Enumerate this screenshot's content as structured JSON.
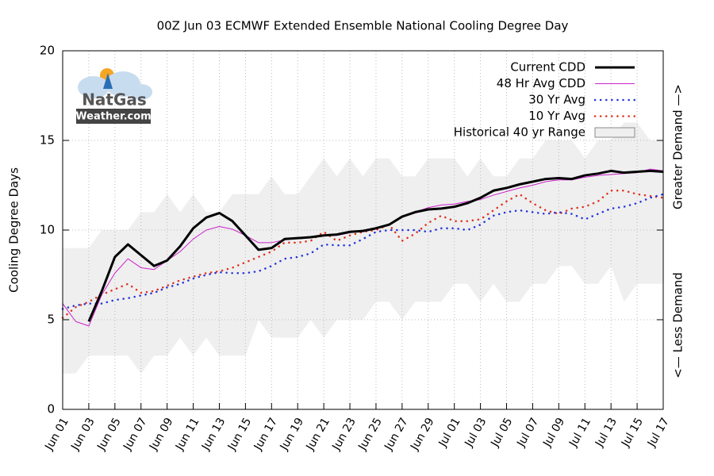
{
  "chart_data": {
    "type": "line",
    "title": "00Z Jun 03 ECMWF Extended Ensemble National Cooling Degree Day",
    "ylabel": "Cooling Degree Days",
    "right_labels": {
      "upper": "Greater Demand —>",
      "lower": "<— Less Demand"
    },
    "logo": {
      "line1": "NatGas",
      "line2": "Weather.com"
    },
    "categories": [
      "Jun 01",
      null,
      "Jun 03",
      null,
      "Jun 05",
      null,
      "Jun 07",
      null,
      "Jun 09",
      null,
      "Jun 11",
      null,
      "Jun 13",
      null,
      "Jun 15",
      null,
      "Jun 17",
      null,
      "Jun 19",
      null,
      "Jun 21",
      null,
      "Jun 23",
      null,
      "Jun 25",
      null,
      "Jun 27",
      null,
      "Jun 29",
      null,
      "Jul 01",
      null,
      "Jul 03",
      null,
      "Jul 05",
      null,
      "Jul 07",
      null,
      "Jul 09",
      null,
      "Jul 11",
      null,
      "Jul 13",
      null,
      "Jul 15",
      null,
      "Jul 17"
    ],
    "ylim": [
      0,
      20
    ],
    "yticks": [
      0,
      5,
      10,
      15,
      20
    ],
    "grid": true,
    "legend": "top-right",
    "range": {
      "name": "Historical 40 yr Range",
      "color": "#efefef",
      "high": [
        9,
        9,
        9,
        10,
        10,
        10,
        11,
        11,
        12,
        11,
        12,
        11,
        11,
        12,
        12,
        12,
        13,
        12,
        12,
        13,
        14,
        13,
        14,
        13,
        14,
        14,
        13,
        13,
        14,
        14,
        14,
        13,
        14,
        13,
        13,
        14,
        14,
        15,
        15,
        15,
        14,
        15,
        15,
        16,
        16,
        15,
        15
      ],
      "low": [
        2,
        2,
        3,
        3,
        3,
        3,
        2,
        3,
        3,
        4,
        3,
        4,
        3,
        3,
        3,
        5,
        4,
        4,
        4,
        5,
        4,
        5,
        5,
        5,
        6,
        6,
        5,
        6,
        6,
        6,
        7,
        7,
        6,
        7,
        6,
        6,
        7,
        7,
        8,
        8,
        7,
        7,
        8,
        6,
        7,
        7,
        7
      ]
    },
    "series": [
      {
        "name": "Current CDD",
        "color": "#000000",
        "style": "bold",
        "values": [
          null,
          null,
          4.9,
          6.6,
          8.5,
          9.2,
          8.6,
          8.0,
          8.3,
          9.1,
          10.1,
          10.7,
          10.95,
          10.5,
          9.7,
          8.9,
          9.0,
          9.5,
          9.55,
          9.6,
          9.7,
          9.75,
          9.9,
          9.95,
          10.1,
          10.3,
          10.75,
          11.0,
          11.15,
          11.2,
          11.3,
          11.5,
          11.8,
          12.2,
          12.35,
          12.55,
          12.7,
          12.85,
          12.9,
          12.85,
          13.05,
          13.15,
          13.3,
          13.2,
          13.25,
          13.3,
          13.25
        ]
      },
      {
        "name": "48 Hr Avg CDD",
        "color": "#cc22cc",
        "style": "thin",
        "values": [
          5.9,
          4.9,
          4.65,
          6.4,
          7.6,
          8.4,
          7.9,
          7.8,
          8.3,
          8.8,
          9.5,
          10.0,
          10.2,
          10.05,
          9.7,
          9.3,
          9.3,
          9.45,
          9.55,
          9.6,
          9.7,
          9.7,
          9.85,
          10.0,
          10.1,
          10.35,
          10.7,
          11.0,
          11.25,
          11.4,
          11.45,
          11.6,
          11.7,
          11.95,
          12.15,
          12.35,
          12.5,
          12.7,
          12.8,
          12.8,
          12.95,
          13.05,
          13.1,
          13.15,
          13.2,
          13.4,
          13.3
        ]
      },
      {
        "name": "30 Yr Avg",
        "color": "#2233dd",
        "style": "dotted",
        "values": [
          5.6,
          5.8,
          5.9,
          5.9,
          6.1,
          6.2,
          6.35,
          6.5,
          6.8,
          7.0,
          7.3,
          7.5,
          7.65,
          7.6,
          7.6,
          7.7,
          8.0,
          8.4,
          8.5,
          8.7,
          9.2,
          9.15,
          9.15,
          9.5,
          9.9,
          10.0,
          10.0,
          10.0,
          9.9,
          10.1,
          10.1,
          10.0,
          10.3,
          10.8,
          11.0,
          11.1,
          11.0,
          10.9,
          11.0,
          10.9,
          10.6,
          10.9,
          11.2,
          11.3,
          11.5,
          11.8,
          12.0
        ]
      },
      {
        "name": "10 Yr Avg",
        "color": "#e03020",
        "style": "dotted",
        "values": [
          5.1,
          5.7,
          6.0,
          6.4,
          6.7,
          7.0,
          6.5,
          6.6,
          6.9,
          7.2,
          7.4,
          7.6,
          7.7,
          7.9,
          8.2,
          8.5,
          8.8,
          9.3,
          9.3,
          9.4,
          9.9,
          9.4,
          9.7,
          9.9,
          10.0,
          10.3,
          9.4,
          9.8,
          10.4,
          10.8,
          10.5,
          10.5,
          10.6,
          11.1,
          11.6,
          12.0,
          11.5,
          11.1,
          10.9,
          11.2,
          11.3,
          11.6,
          12.2,
          12.2,
          12.0,
          11.9,
          11.8
        ]
      }
    ]
  }
}
